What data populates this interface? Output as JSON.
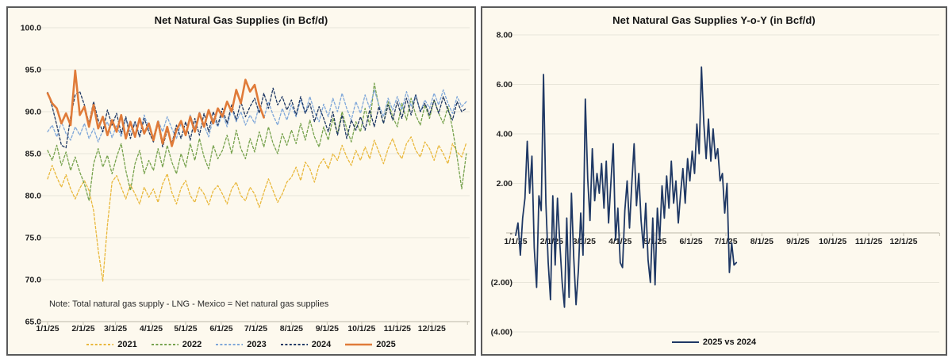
{
  "page_background": "#ffffff",
  "chart_data": [
    {
      "id": "supplies",
      "type": "line",
      "title": "Net Natural Gas Supplies (in Bcf/d)",
      "note": "Note: Total natural gas supply - LNG - Mexico = Net natural gas supplies",
      "plot_bg": "#FDF9EE",
      "grid_color": "#E8E5D9",
      "axis_color": "#C9C5B6",
      "grid_on": true,
      "legend_position": "bottom",
      "y_axis": {
        "min": 65,
        "max": 100,
        "step": 5,
        "format": "dec1",
        "axis_at": 65
      },
      "x_labels": [
        "1/1/25",
        "2/1/25",
        "3/1/25",
        "4/1/25",
        "5/1/25",
        "6/1/25",
        "7/1/25",
        "8/1/25",
        "9/1/25",
        "10/1/25",
        "11/1/25",
        "12/1/25"
      ],
      "x_label_days": [
        0,
        31,
        59,
        90,
        120,
        151,
        181,
        212,
        243,
        273,
        304,
        334
      ],
      "days_total": 365,
      "series": [
        {
          "name": "2021",
          "color": "#E9B83C",
          "dash": "3 2.4",
          "width": 1.3,
          "start_day": 0,
          "step_days": 4,
          "values": [
            82.0,
            83.6,
            82.2,
            81.0,
            82.5,
            80.8,
            79.6,
            80.9,
            81.8,
            80.6,
            78.2,
            73.5,
            69.8,
            76.5,
            81.6,
            82.4,
            81.0,
            79.6,
            81.3,
            80.2,
            79.0,
            81.0,
            79.8,
            80.8,
            79.2,
            81.4,
            82.6,
            80.4,
            79.0,
            80.9,
            81.8,
            80.0,
            79.2,
            81.0,
            80.2,
            78.9,
            80.6,
            81.2,
            80.2,
            79.0,
            80.8,
            81.6,
            80.0,
            79.4,
            81.0,
            80.2,
            78.6,
            80.4,
            82.0,
            80.6,
            79.2,
            80.2,
            81.6,
            82.2,
            83.4,
            81.8,
            84.0,
            83.2,
            81.6,
            83.6,
            84.4,
            83.2,
            85.0,
            84.2,
            86.0,
            84.6,
            83.6,
            85.4,
            84.2,
            85.8,
            84.4,
            86.6,
            85.2,
            83.8,
            85.6,
            86.8,
            85.2,
            84.4,
            86.2,
            87.0,
            85.4,
            84.6,
            86.4,
            85.6,
            84.2,
            86.0,
            85.0,
            83.8,
            86.2,
            85.2,
            84.6,
            86.3
          ]
        },
        {
          "name": "2022",
          "color": "#76A24D",
          "dash": "3 2.4",
          "width": 1.3,
          "start_day": 0,
          "step_days": 4,
          "values": [
            85.4,
            84.2,
            86.0,
            83.6,
            85.2,
            83.0,
            84.6,
            82.8,
            81.4,
            79.4,
            83.8,
            85.6,
            83.4,
            84.8,
            82.6,
            84.6,
            86.2,
            83.0,
            80.6,
            83.8,
            85.4,
            82.6,
            84.2,
            83.0,
            85.6,
            83.4,
            86.0,
            84.0,
            82.6,
            85.0,
            83.4,
            86.2,
            84.2,
            86.8,
            84.6,
            83.2,
            86.0,
            84.4,
            85.4,
            87.2,
            85.0,
            87.8,
            85.6,
            84.4,
            86.8,
            85.2,
            87.6,
            85.8,
            88.2,
            86.2,
            85.0,
            87.4,
            86.0,
            87.8,
            86.2,
            88.6,
            86.6,
            89.0,
            87.0,
            85.8,
            88.2,
            86.6,
            89.2,
            87.4,
            90.0,
            88.0,
            86.4,
            88.8,
            87.6,
            90.4,
            88.4,
            93.4,
            90.6,
            88.6,
            91.2,
            89.4,
            88.2,
            91.0,
            89.0,
            91.6,
            89.6,
            88.4,
            90.8,
            89.2,
            91.4,
            89.8,
            88.6,
            90.6,
            88.0,
            84.6,
            80.8,
            85.0
          ]
        },
        {
          "name": "2023",
          "color": "#7FA7D9",
          "dash": "3 2.4",
          "width": 1.3,
          "start_day": 0,
          "step_days": 4,
          "values": [
            87.6,
            88.4,
            87.0,
            88.8,
            87.4,
            86.6,
            88.2,
            87.2,
            88.6,
            86.8,
            88.0,
            86.4,
            87.8,
            88.8,
            86.9,
            88.4,
            87.0,
            89.2,
            87.6,
            88.8,
            87.2,
            89.6,
            88.0,
            87.0,
            89.0,
            87.6,
            89.4,
            88.0,
            86.8,
            88.6,
            87.2,
            89.6,
            88.0,
            90.0,
            88.4,
            87.0,
            89.2,
            88.2,
            89.8,
            88.2,
            90.4,
            88.8,
            90.0,
            88.4,
            89.6,
            88.6,
            90.8,
            89.2,
            91.2,
            89.6,
            88.4,
            90.4,
            89.0,
            90.8,
            89.4,
            91.4,
            89.8,
            91.8,
            90.0,
            88.8,
            90.9,
            89.4,
            91.6,
            90.0,
            92.2,
            90.4,
            89.0,
            91.2,
            89.8,
            92.0,
            90.4,
            92.6,
            90.8,
            89.4,
            91.6,
            90.2,
            91.8,
            90.2,
            92.4,
            90.6,
            92.0,
            90.0,
            91.4,
            90.4,
            92.2,
            90.8,
            92.6,
            91.0,
            89.8,
            91.8,
            90.6,
            91.2
          ]
        },
        {
          "name": "2024",
          "color": "#1F3864",
          "dash": "3 2.4",
          "width": 1.3,
          "start_day": 0,
          "step_days": 4,
          "values": [
            92.3,
            90.6,
            88.4,
            86.0,
            85.7,
            89.4,
            92.0,
            92.4,
            90.8,
            88.6,
            91.2,
            89.0,
            87.6,
            90.2,
            88.4,
            89.8,
            87.4,
            89.4,
            86.8,
            88.8,
            87.0,
            89.2,
            87.6,
            86.4,
            88.6,
            85.8,
            87.8,
            86.2,
            88.4,
            86.8,
            88.8,
            86.6,
            89.2,
            87.2,
            89.8,
            87.6,
            90.0,
            88.4,
            90.4,
            88.6,
            90.8,
            89.0,
            91.2,
            89.4,
            90.6,
            91.6,
            89.8,
            92.2,
            90.4,
            92.8,
            90.8,
            91.8,
            90.2,
            91.4,
            89.6,
            91.8,
            89.8,
            91.0,
            88.8,
            90.6,
            89.2,
            87.6,
            90.0,
            87.2,
            89.6,
            86.8,
            89.0,
            87.8,
            89.4,
            87.8,
            90.2,
            88.2,
            90.6,
            88.6,
            90.8,
            89.0,
            91.2,
            89.2,
            91.6,
            89.6,
            92.0,
            90.0,
            91.0,
            89.6,
            91.4,
            89.8,
            91.8,
            90.2,
            89.0,
            91.2,
            90.0,
            90.4
          ]
        },
        {
          "name": "2025",
          "color": "#E07B39",
          "dash": null,
          "width": 2.6,
          "start_day": 0,
          "step_days": 4,
          "values": [
            92.2,
            91.0,
            90.4,
            88.6,
            89.8,
            88.4,
            94.9,
            89.6,
            90.6,
            88.2,
            90.8,
            88.0,
            89.4,
            87.2,
            89.0,
            87.6,
            89.6,
            86.8,
            88.8,
            87.0,
            89.2,
            87.4,
            88.6,
            86.6,
            88.8,
            86.2,
            88.2,
            85.9,
            87.8,
            88.9,
            87.2,
            89.4,
            87.6,
            89.8,
            88.2,
            90.2,
            88.6,
            90.4,
            89.4,
            91.2,
            90.0,
            92.6,
            91.0,
            93.8,
            92.4,
            93.2,
            90.8,
            89.3
          ]
        }
      ]
    },
    {
      "id": "yoy",
      "type": "line",
      "title": "Net Natural Gas Supplies Y-o-Y (in Bcf/d)",
      "note": "",
      "plot_bg": "#FDF9EE",
      "grid_color": "#E8E5D9",
      "axis_color": "#C9C5B6",
      "grid_on": true,
      "legend_position": "bottom",
      "y_axis": {
        "min": -4,
        "max": 8,
        "step": 2,
        "format": "acct2",
        "axis_at": 0
      },
      "x_labels": [
        "1/1/25",
        "2/1/25",
        "3/1/25",
        "4/1/25",
        "5/1/25",
        "6/1/25",
        "7/1/25",
        "8/1/25",
        "9/1/25",
        "10/1/25",
        "11/1/25",
        "12/1/25"
      ],
      "x_label_days": [
        0,
        31,
        59,
        90,
        120,
        151,
        181,
        212,
        243,
        273,
        304,
        334
      ],
      "days_total": 365,
      "series": [
        {
          "name": "2025 vs 2024",
          "color": "#1F3864",
          "dash": null,
          "width": 1.8,
          "start_day": 0,
          "step_days": 2,
          "values": [
            -0.1,
            0.4,
            -0.9,
            0.6,
            1.4,
            3.7,
            1.6,
            3.1,
            -0.6,
            -2.2,
            1.5,
            0.9,
            6.4,
            1.2,
            -1.2,
            -2.7,
            1.5,
            -1.3,
            1.4,
            -0.4,
            -2.0,
            -3.0,
            0.6,
            -2.6,
            1.6,
            -1.0,
            -2.9,
            -1.5,
            0.8,
            -0.9,
            5.4,
            2.2,
            0.5,
            3.4,
            1.3,
            2.4,
            1.6,
            2.8,
            1.0,
            2.9,
            0.4,
            2.0,
            3.6,
            -0.3,
            1.0,
            -1.2,
            -1.4,
            0.9,
            2.1,
            0.2,
            2.0,
            3.6,
            1.1,
            2.4,
            0.5,
            -0.6,
            1.2,
            -1.1,
            -2.0,
            0.6,
            -2.1,
            1.0,
            -0.3,
            1.9,
            0.6,
            2.3,
            1.0,
            2.9,
            1.2,
            2.1,
            0.4,
            1.6,
            2.6,
            1.2,
            3.0,
            2.1,
            3.3,
            2.4,
            4.4,
            3.2,
            6.7,
            4.4,
            3.0,
            4.6,
            2.9,
            4.2,
            3.0,
            3.4,
            2.1,
            2.4,
            0.8,
            2.0,
            -1.6,
            -0.4,
            -1.3,
            -1.2
          ]
        }
      ]
    }
  ]
}
